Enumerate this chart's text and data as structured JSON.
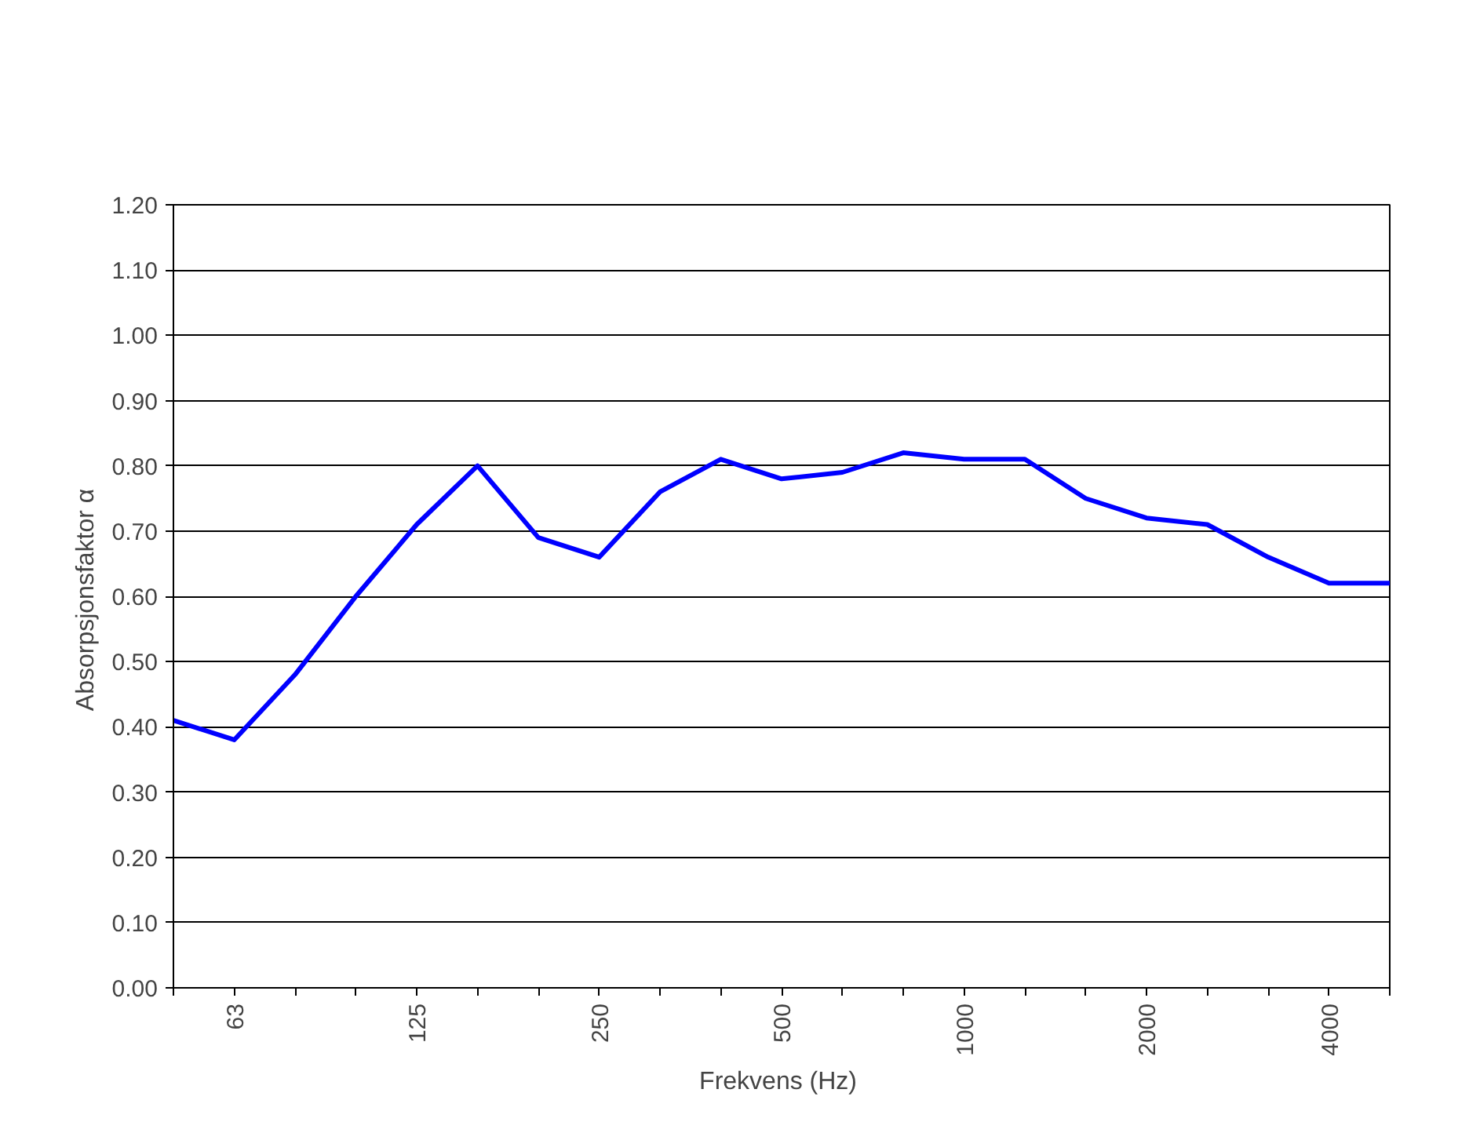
{
  "chart_data": {
    "type": "line",
    "xlabel": "Frekvens  (Hz)",
    "ylabel": "Absorpsjonsfaktor  α",
    "categories": [
      null,
      "63",
      null,
      null,
      "125",
      null,
      null,
      "250",
      null,
      null,
      "500",
      null,
      null,
      "1000",
      null,
      null,
      "2000",
      null,
      null,
      "4000",
      null
    ],
    "series": [
      {
        "color": "#0000ff",
        "values": [
          0.41,
          0.38,
          0.48,
          0.6,
          0.71,
          0.8,
          0.69,
          0.66,
          0.76,
          0.81,
          0.78,
          0.79,
          0.82,
          0.81,
          0.81,
          0.75,
          0.72,
          0.71,
          0.66,
          0.62,
          0.62
        ]
      }
    ],
    "ylim": [
      0,
      1.2
    ],
    "yticks": [
      {
        "value": 0,
        "label": "0.00"
      },
      {
        "value": 0.1,
        "label": "0.10"
      },
      {
        "value": 0.2,
        "label": "0.20"
      },
      {
        "value": 0.3,
        "label": "0.30"
      },
      {
        "value": 0.4,
        "label": "0.40"
      },
      {
        "value": 0.5,
        "label": "0.50"
      },
      {
        "value": 0.6,
        "label": "0.60"
      },
      {
        "value": 0.7,
        "label": "0.70"
      },
      {
        "value": 0.8,
        "label": "0.80"
      },
      {
        "value": 0.9,
        "label": "0.90"
      },
      {
        "value": 1.0,
        "label": "1.00"
      },
      {
        "value": 1.1,
        "label": "1.10"
      },
      {
        "value": 1.2,
        "label": "1.20"
      }
    ],
    "grid": "y",
    "marker": "none",
    "line_style": "solid"
  }
}
